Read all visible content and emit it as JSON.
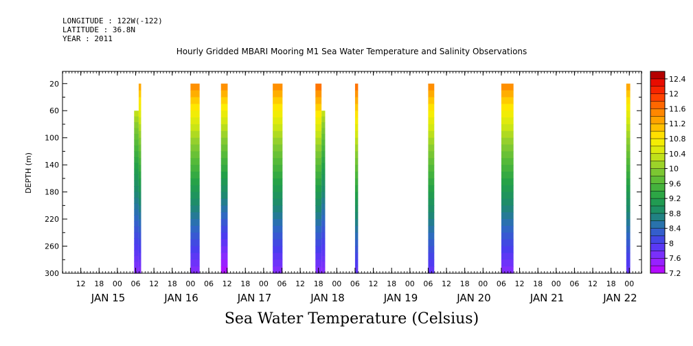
{
  "header": {
    "longitude": "LONGITUDE : 122W(-122)",
    "latitude": "LATITUDE : 36.8N",
    "year": "YEAR : 2011"
  },
  "chart_data": {
    "type": "heatmap",
    "title": "Hourly Gridded MBARI Mooring M1 Sea Water Temperature and Salinity Observations",
    "ylabel": "DEPTH (m)",
    "bottom_label": "Sea Water Temperature (Celsius)",
    "x_axis": {
      "unit": "hours since JAN 15 00:00",
      "range_hours": [
        -18,
        172
      ],
      "hour_ticks": [
        {
          "h": -12,
          "label": "12"
        },
        {
          "h": -6,
          "label": "18"
        },
        {
          "h": 0,
          "label": "00"
        },
        {
          "h": 6,
          "label": "06"
        },
        {
          "h": 12,
          "label": "12"
        },
        {
          "h": 18,
          "label": "18"
        },
        {
          "h": 24,
          "label": "00"
        },
        {
          "h": 30,
          "label": "06"
        },
        {
          "h": 36,
          "label": "12"
        },
        {
          "h": 42,
          "label": "18"
        },
        {
          "h": 48,
          "label": "00"
        },
        {
          "h": 54,
          "label": "06"
        },
        {
          "h": 60,
          "label": "12"
        },
        {
          "h": 66,
          "label": "18"
        },
        {
          "h": 72,
          "label": "00"
        },
        {
          "h": 78,
          "label": "06"
        },
        {
          "h": 84,
          "label": "12"
        },
        {
          "h": 90,
          "label": "18"
        },
        {
          "h": 96,
          "label": "00"
        },
        {
          "h": 102,
          "label": "06"
        },
        {
          "h": 108,
          "label": "12"
        },
        {
          "h": 114,
          "label": "18"
        },
        {
          "h": 120,
          "label": "00"
        },
        {
          "h": 126,
          "label": "06"
        },
        {
          "h": 132,
          "label": "12"
        },
        {
          "h": 138,
          "label": "18"
        },
        {
          "h": 144,
          "label": "00"
        },
        {
          "h": 150,
          "label": "06"
        },
        {
          "h": 156,
          "label": "12"
        },
        {
          "h": 162,
          "label": "18"
        },
        {
          "h": 168,
          "label": "00"
        }
      ],
      "day_labels": [
        {
          "h": -3,
          "label": "JAN 15"
        },
        {
          "h": 21,
          "label": "JAN 16"
        },
        {
          "h": 45,
          "label": "JAN 17"
        },
        {
          "h": 69,
          "label": "JAN 18"
        },
        {
          "h": 93,
          "label": "JAN 19"
        },
        {
          "h": 117,
          "label": "JAN 20"
        },
        {
          "h": 141,
          "label": "JAN 21"
        },
        {
          "h": 165,
          "label": "JAN 22"
        }
      ]
    },
    "y_axis": {
      "range": [
        300,
        2
      ],
      "ticks": [
        20,
        60,
        100,
        140,
        180,
        220,
        260,
        300
      ]
    },
    "colorbar": {
      "min": 7.2,
      "max": 12.6,
      "step": 0.2,
      "labels": [
        "12.4",
        "12",
        "11.6",
        "11.2",
        "10.8",
        "10.4",
        "10",
        "9.6",
        "9.2",
        "8.8",
        "8.4",
        "8",
        "7.6",
        "7.2"
      ]
    },
    "columns": [
      {
        "start_h": 5.5,
        "end_h": 7.0,
        "top_depth": 60,
        "bottom_depth": 300,
        "t_top": 10.4,
        "t_bottom": 7.6
      },
      {
        "start_h": 7.0,
        "end_h": 7.8,
        "top_depth": 20,
        "bottom_depth": 300,
        "t_top": 11.4,
        "t_bottom": 7.6
      },
      {
        "start_h": 24.0,
        "end_h": 27.0,
        "top_depth": 20,
        "bottom_depth": 300,
        "t_top": 11.6,
        "t_bottom": 7.6
      },
      {
        "start_h": 34.0,
        "end_h": 36.2,
        "top_depth": 20,
        "bottom_depth": 300,
        "t_top": 11.6,
        "t_bottom": 7.3
      },
      {
        "start_h": 51.0,
        "end_h": 54.2,
        "top_depth": 20,
        "bottom_depth": 300,
        "t_top": 11.6,
        "t_bottom": 7.6
      },
      {
        "start_h": 65.0,
        "end_h": 67.0,
        "top_depth": 20,
        "bottom_depth": 300,
        "t_top": 11.8,
        "t_bottom": 7.6
      },
      {
        "start_h": 67.0,
        "end_h": 68.2,
        "top_depth": 60,
        "bottom_depth": 300,
        "t_top": 10.4,
        "t_bottom": 7.6
      },
      {
        "start_h": 78.0,
        "end_h": 79.0,
        "top_depth": 20,
        "bottom_depth": 300,
        "t_top": 11.8,
        "t_bottom": 7.8
      },
      {
        "start_h": 102.0,
        "end_h": 104.0,
        "top_depth": 20,
        "bottom_depth": 300,
        "t_top": 11.6,
        "t_bottom": 7.8
      },
      {
        "start_h": 126.0,
        "end_h": 130.0,
        "top_depth": 20,
        "bottom_depth": 300,
        "t_top": 11.6,
        "t_bottom": 7.6
      },
      {
        "start_h": 167.0,
        "end_h": 168.3,
        "top_depth": 20,
        "bottom_depth": 300,
        "t_top": 11.4,
        "t_bottom": 7.8
      }
    ],
    "grid": false,
    "legend": "right"
  }
}
